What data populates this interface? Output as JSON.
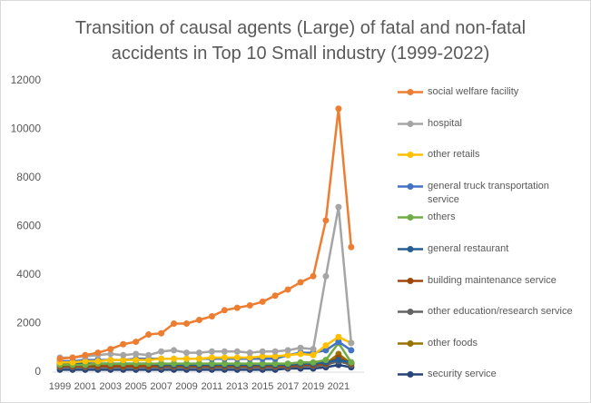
{
  "chart_data": {
    "type": "line",
    "title": "Transition of causal agents (Large) of fatal and non-fatal accidents in Top 10 Small industry (1999-2022)",
    "categories": [
      "1999",
      null,
      "2001",
      null,
      "2003",
      null,
      "2005",
      null,
      "2007",
      null,
      "2009",
      null,
      "2011",
      null,
      "2013",
      null,
      "2015",
      null,
      "2017",
      null,
      "2019",
      null,
      "2021",
      null
    ],
    "ylim": [
      0,
      12000
    ],
    "yticks": [
      0,
      2000,
      4000,
      6000,
      8000,
      10000,
      12000
    ],
    "grid": false,
    "legend": "right",
    "series": [
      {
        "name": "social welfare facility",
        "color": "#ED7D31",
        "values": [
          550,
          600,
          700,
          800,
          950,
          1150,
          1250,
          1550,
          1600,
          2000,
          2000,
          2150,
          2300,
          2550,
          2650,
          2750,
          2900,
          3150,
          3400,
          3700,
          3950,
          6250,
          10850,
          5150
        ]
      },
      {
        "name": "hospital",
        "color": "#A5A5A5",
        "values": [
          600,
          600,
          650,
          700,
          750,
          700,
          750,
          700,
          850,
          900,
          800,
          800,
          850,
          850,
          850,
          800,
          850,
          850,
          900,
          1000,
          950,
          3950,
          6800,
          1200
        ]
      },
      {
        "name": "other retails",
        "color": "#FFC000",
        "values": [
          400,
          400,
          450,
          450,
          500,
          500,
          500,
          500,
          550,
          550,
          550,
          550,
          600,
          600,
          600,
          600,
          650,
          650,
          700,
          750,
          700,
          1100,
          1450,
          1200
        ]
      },
      {
        "name": "general truck transportation service",
        "color": "#4472C4",
        "values": [
          450,
          450,
          500,
          500,
          500,
          500,
          550,
          550,
          550,
          550,
          550,
          550,
          550,
          550,
          550,
          550,
          550,
          550,
          700,
          800,
          800,
          900,
          1250,
          900
        ]
      },
      {
        "name": "others",
        "color": "#70AD47",
        "values": [
          300,
          300,
          300,
          350,
          350,
          350,
          350,
          350,
          350,
          350,
          350,
          350,
          350,
          350,
          350,
          350,
          350,
          350,
          350,
          400,
          400,
          500,
          1200,
          400
        ]
      },
      {
        "name": "general restaurant",
        "color": "#255E91",
        "values": [
          350,
          350,
          350,
          350,
          350,
          350,
          350,
          350,
          300,
          300,
          300,
          300,
          300,
          300,
          300,
          300,
          300,
          300,
          300,
          350,
          350,
          400,
          500,
          400
        ]
      },
      {
        "name": "building maintenance service",
        "color": "#9E480E",
        "values": [
          250,
          250,
          250,
          250,
          250,
          250,
          250,
          250,
          250,
          250,
          250,
          250,
          250,
          250,
          250,
          250,
          250,
          250,
          250,
          300,
          300,
          350,
          600,
          350
        ]
      },
      {
        "name": "other education/research service",
        "color": "#636363",
        "values": [
          200,
          200,
          200,
          200,
          200,
          200,
          200,
          200,
          200,
          200,
          200,
          200,
          200,
          200,
          200,
          200,
          200,
          200,
          200,
          250,
          250,
          300,
          450,
          300
        ]
      },
      {
        "name": "other foods",
        "color": "#997300",
        "values": [
          250,
          250,
          250,
          250,
          250,
          250,
          250,
          250,
          250,
          250,
          250,
          250,
          250,
          250,
          250,
          250,
          250,
          250,
          250,
          300,
          300,
          350,
          750,
          350
        ]
      },
      {
        "name": "security service",
        "color": "#264478",
        "values": [
          100,
          100,
          100,
          100,
          100,
          100,
          100,
          100,
          100,
          100,
          100,
          100,
          100,
          100,
          100,
          100,
          100,
          100,
          150,
          150,
          150,
          200,
          300,
          200
        ]
      }
    ]
  }
}
